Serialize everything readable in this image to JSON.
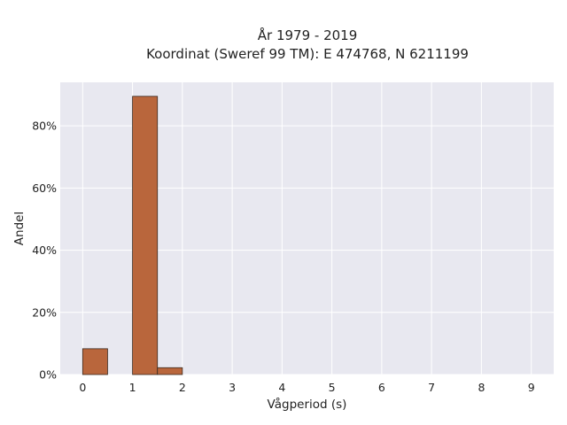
{
  "chart_data": {
    "type": "bar",
    "title_line1": "År 1979 - 2019",
    "title_line2": "Koordinat (Sweref 99 TM): E 474768, N 6211199",
    "xlabel": "Vågperiod (s)",
    "ylabel": "Andel",
    "bin_width": 0.5,
    "bins": [
      {
        "x0": 0.0,
        "x1": 0.5,
        "value": 8.3
      },
      {
        "x0": 1.0,
        "x1": 1.5,
        "value": 89.5
      },
      {
        "x0": 1.5,
        "x1": 2.0,
        "value": 2.2
      }
    ],
    "xlim": [
      -0.45,
      9.45
    ],
    "ylim": [
      0,
      94
    ],
    "x_ticks": [
      "0",
      "1",
      "2",
      "3",
      "4",
      "5",
      "6",
      "7",
      "8",
      "9"
    ],
    "y_ticks": [
      "0%",
      "20%",
      "40%",
      "60%",
      "80%"
    ],
    "y_tick_values": [
      0,
      20,
      40,
      60,
      80
    ],
    "grid": true,
    "colors": {
      "bar_fill": "#b9663c",
      "bar_stroke": "#3a2a20",
      "plot_background": "#e8e8f0",
      "grid": "#ffffff"
    }
  }
}
